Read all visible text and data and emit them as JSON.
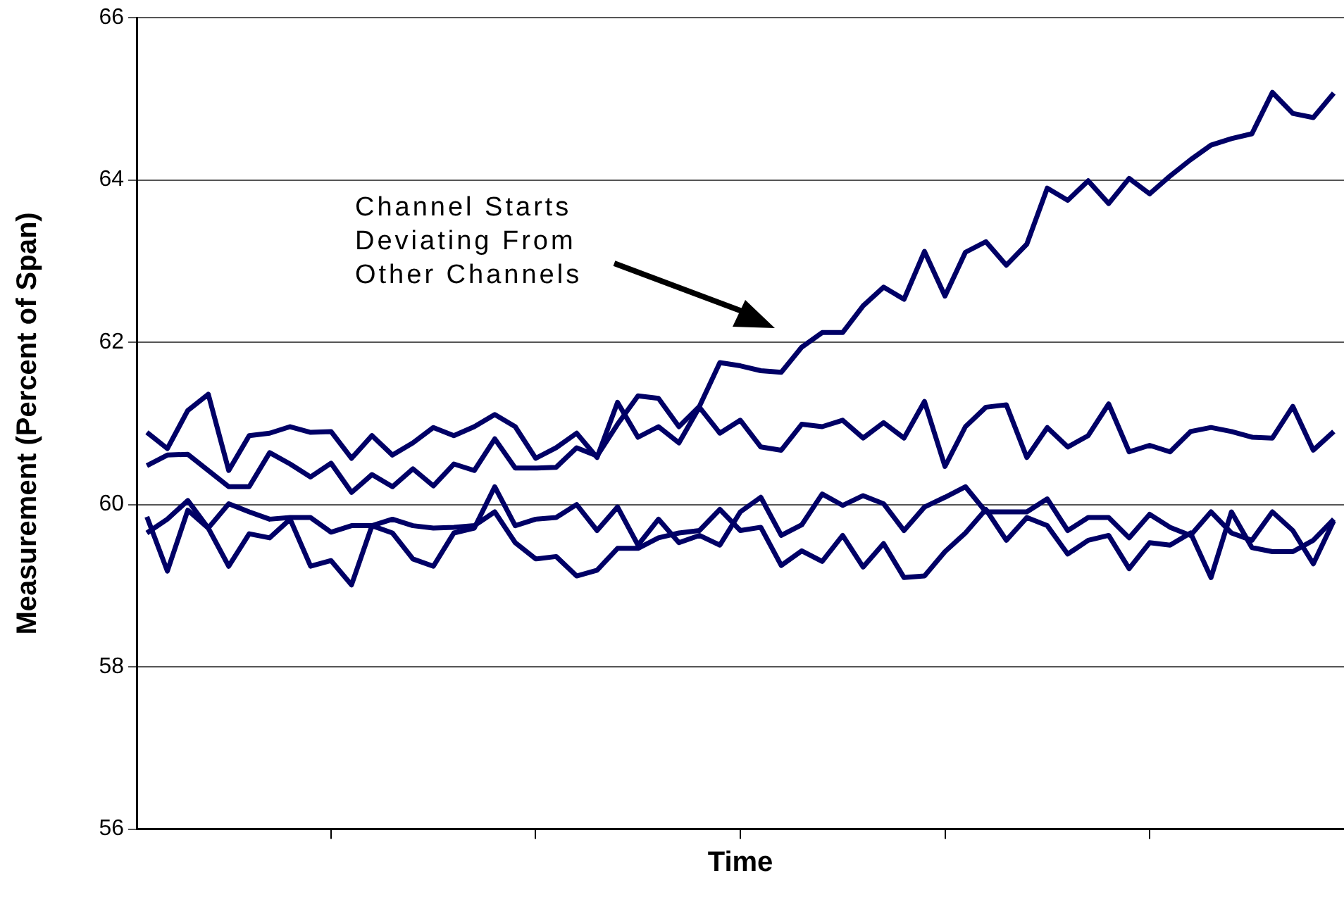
{
  "chart_data": {
    "type": "line",
    "xlabel": "Time",
    "ylabel": "Measurement (Percent of Span)",
    "categories": [
      null,
      null,
      null,
      null,
      null,
      null,
      null,
      null,
      null,
      null,
      null,
      null,
      null,
      null,
      null,
      null,
      null,
      null,
      null,
      null,
      null,
      null,
      null,
      null,
      null,
      null,
      null,
      null,
      null,
      null,
      null,
      null,
      null,
      null,
      null,
      null,
      null,
      null,
      null,
      null,
      null,
      null,
      null,
      null,
      null,
      null,
      null,
      null,
      null,
      null,
      null,
      null,
      null,
      null,
      null,
      null,
      null,
      null,
      null
    ],
    "series": [
      {
        "color": "#000066",
        "values": [
          60.89,
          60.69,
          61.16,
          61.36,
          60.42,
          60.85,
          60.88,
          60.96,
          60.89,
          60.9,
          60.57,
          60.85,
          60.61,
          60.76,
          60.95,
          60.85,
          60.96,
          61.11,
          60.96,
          60.57,
          60.7,
          60.88,
          60.58,
          61.26,
          60.83,
          60.96,
          60.76,
          61.2,
          60.88,
          61.04,
          60.71,
          60.67,
          60.99,
          60.96,
          61.04,
          60.82,
          61.01,
          60.82,
          61.27,
          60.47,
          60.96,
          61.2,
          61.23,
          60.58,
          60.95,
          60.71,
          60.85,
          61.24,
          60.65,
          60.73,
          60.65,
          60.9,
          60.95,
          60.9,
          60.83,
          60.82,
          61.21,
          60.67,
          60.9
        ]
      },
      {
        "color": "#000066",
        "values": [
          60.48,
          60.61,
          60.62,
          60.42,
          60.22,
          60.22,
          60.64,
          60.5,
          60.34,
          60.51,
          60.15,
          60.37,
          60.22,
          60.44,
          60.23,
          60.5,
          60.42,
          60.81,
          60.45,
          60.45,
          60.46,
          60.7,
          60.6,
          60.99,
          61.34,
          61.31,
          60.96,
          61.21,
          61.75,
          61.71,
          61.65,
          61.63,
          61.94,
          62.12,
          62.12,
          62.45,
          62.68,
          62.53,
          63.12,
          62.57,
          63.11,
          63.24,
          62.95,
          63.21,
          63.9,
          63.75,
          63.99,
          63.71,
          64.02,
          63.83,
          64.05,
          64.25,
          64.43,
          64.51,
          64.57,
          65.08,
          64.82,
          64.77,
          65.07
        ]
      },
      {
        "color": "#000066",
        "values": [
          59.65,
          59.82,
          60.05,
          59.71,
          60.01,
          59.91,
          59.82,
          59.84,
          59.84,
          59.66,
          59.74,
          59.74,
          59.82,
          59.74,
          59.71,
          59.72,
          59.74,
          59.91,
          59.53,
          59.33,
          59.36,
          59.12,
          59.19,
          59.46,
          59.46,
          59.59,
          59.65,
          59.68,
          59.94,
          59.68,
          59.72,
          59.25,
          59.43,
          59.3,
          59.62,
          59.23,
          59.52,
          59.1,
          59.12,
          59.42,
          59.65,
          59.94,
          59.56,
          59.84,
          59.74,
          59.39,
          59.56,
          59.62,
          59.21,
          59.53,
          59.5,
          59.65,
          59.1,
          59.91,
          59.47,
          59.42,
          59.42,
          59.56,
          59.82
        ]
      },
      {
        "color": "#000066",
        "values": [
          59.85,
          59.18,
          59.93,
          59.71,
          59.24,
          59.64,
          59.59,
          59.82,
          59.24,
          59.31,
          59.01,
          59.74,
          59.65,
          59.33,
          59.24,
          59.65,
          59.71,
          60.22,
          59.74,
          59.82,
          59.84,
          60.0,
          59.68,
          59.97,
          59.5,
          59.82,
          59.53,
          59.62,
          59.5,
          59.91,
          60.09,
          59.62,
          59.75,
          60.13,
          59.99,
          60.11,
          60.01,
          59.68,
          59.97,
          60.09,
          60.22,
          59.91,
          59.91,
          59.91,
          60.07,
          59.68,
          59.84,
          59.84,
          59.59,
          59.88,
          59.72,
          59.62,
          59.91,
          59.65,
          59.56,
          59.91,
          59.68,
          59.27,
          59.8
        ]
      }
    ],
    "ylim": [
      56,
      66
    ],
    "yticks": [
      56,
      58,
      60,
      62,
      64,
      66
    ],
    "grid": "y",
    "legend": false,
    "marker": "none",
    "line_style": "solid",
    "annotations": [
      "Channel Starts\nDeviating From\nOther Channels"
    ]
  }
}
